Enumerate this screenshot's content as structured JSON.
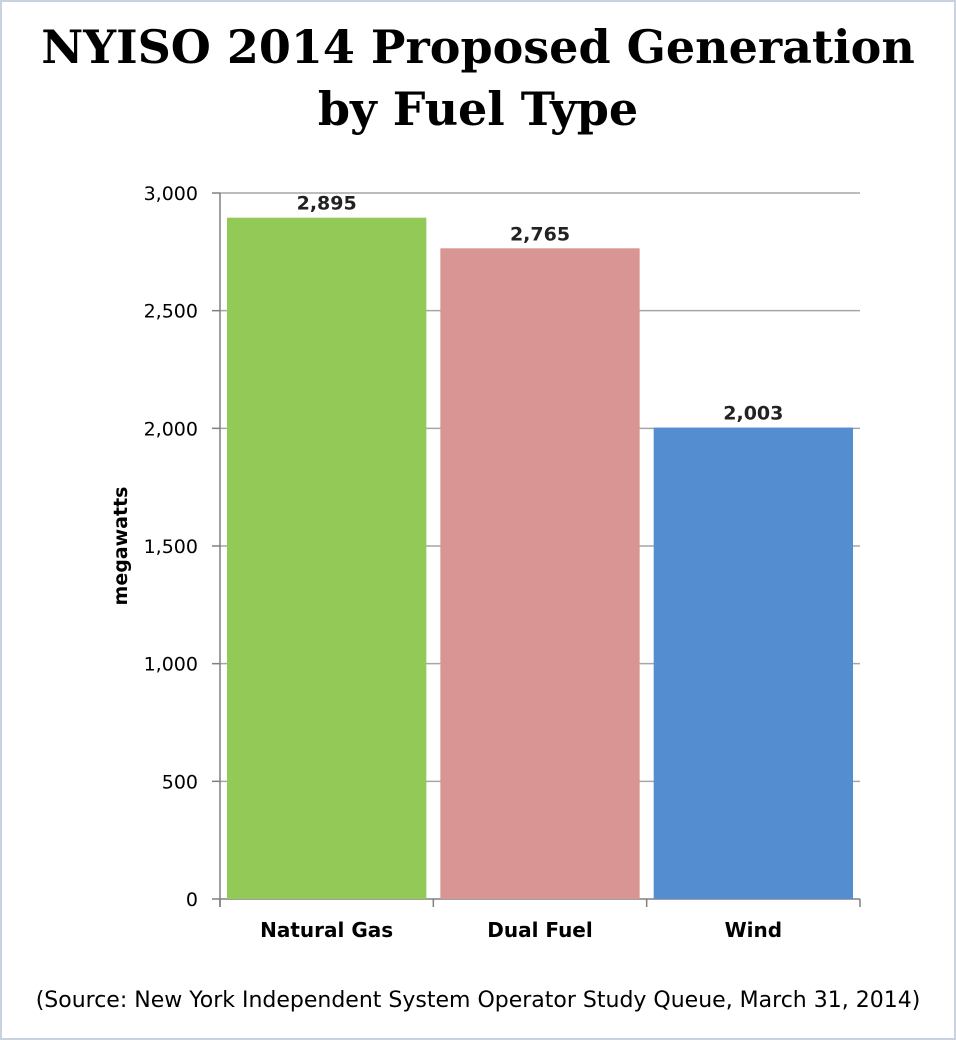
{
  "chart_data": {
    "type": "bar",
    "title": [
      "NYISO 2014 Proposed Generation",
      "by Fuel Type"
    ],
    "categories": [
      "Natural Gas",
      "Dual Fuel",
      "Wind"
    ],
    "values": [
      2895,
      2765,
      2003
    ],
    "value_labels": [
      "2,895",
      "2,765",
      "2,003"
    ],
    "colors": [
      "#92c957",
      "#d99594",
      "#558ed0"
    ],
    "xlabel": "",
    "ylabel": "megawatts",
    "ylim": [
      0,
      3000
    ],
    "yticks": [
      0,
      500,
      1000,
      1500,
      2000,
      2500,
      3000
    ],
    "ytick_labels": [
      "0",
      "500",
      "1,000",
      "1,500",
      "2,000",
      "2,500",
      "3,000"
    ],
    "grid": true,
    "legend": "none"
  },
  "source_note": "(Source: New York Independent System Operator Study Queue, March 31, 2014)"
}
